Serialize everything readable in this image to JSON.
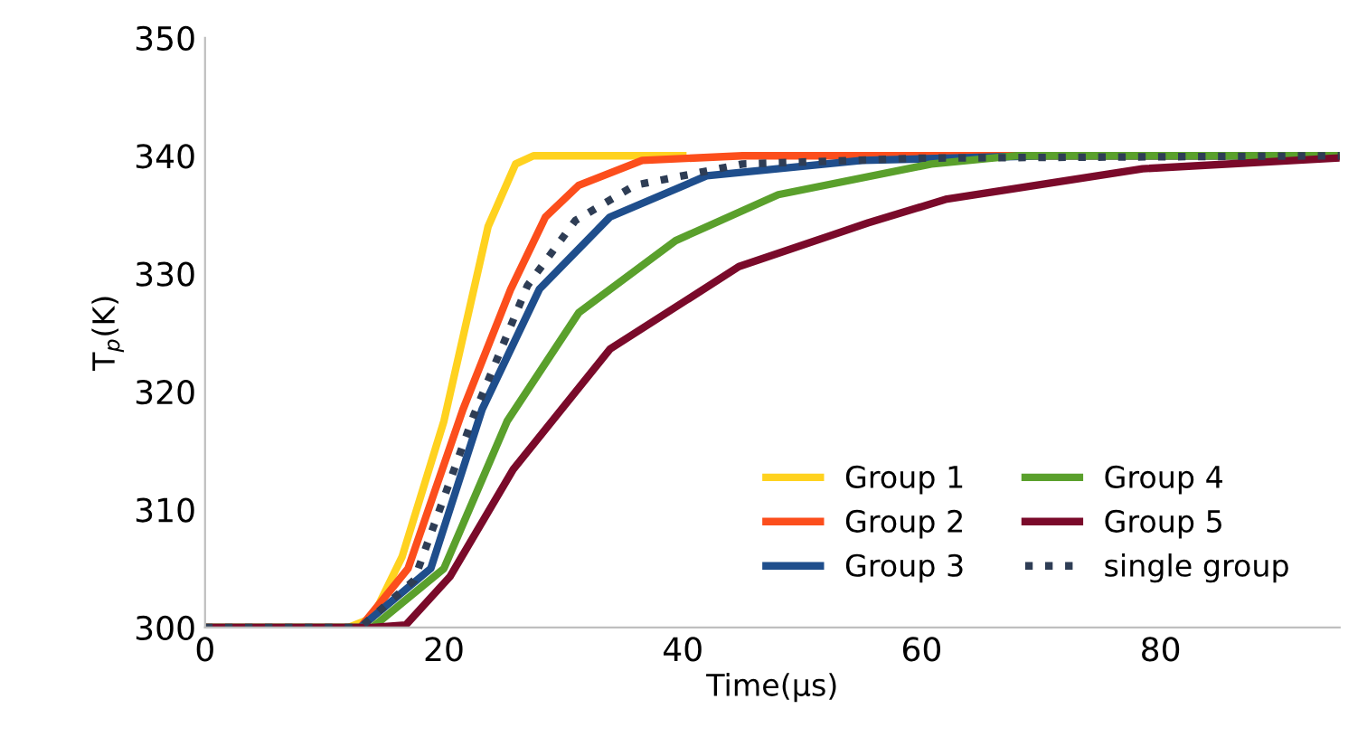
{
  "chart_data": {
    "type": "line",
    "xlabel": "Time(µs)",
    "ylabel": "T$_{p}$(K)",
    "xlim": [
      0,
      95
    ],
    "xticks": [
      0,
      20,
      40,
      60,
      80
    ],
    "ylim": [
      300,
      350
    ],
    "yticks": [
      300,
      310,
      320,
      330,
      340,
      350
    ],
    "grid": false,
    "legend": "bottom right",
    "marker": "none",
    "series": [
      {
        "name": "Group 1",
        "color": "#ffd21f",
        "line_style": "solid",
        "x": [
          0,
          12,
          14,
          16.5,
          20,
          23.7,
          26,
          27.5,
          40
        ],
        "values": [
          300,
          300,
          300.8,
          306,
          317.5,
          334,
          339.3,
          340,
          340
        ]
      },
      {
        "name": "Group 2",
        "color": "#fc4e1c",
        "line_style": "solid",
        "x": [
          0,
          13,
          17,
          21.6,
          25.6,
          28.5,
          31.3,
          36.6,
          45,
          95
        ],
        "values": [
          300,
          300,
          305,
          318.5,
          328.7,
          334.8,
          337.5,
          339.6,
          340,
          340
        ]
      },
      {
        "name": "Group 3",
        "color": "#1f4e8c",
        "line_style": "solid",
        "x": [
          0,
          13,
          18.9,
          23.2,
          28,
          33.9,
          42,
          55,
          70,
          95
        ],
        "values": [
          300,
          300,
          305,
          318.5,
          328.7,
          334.8,
          338.3,
          339.6,
          340,
          340
        ]
      },
      {
        "name": "Group 4",
        "color": "#5aa02c",
        "line_style": "solid",
        "x": [
          0,
          14,
          20,
          25.3,
          31.3,
          39.4,
          48,
          60.8,
          68,
          95
        ],
        "values": [
          300,
          300,
          305,
          317.5,
          326.7,
          332.8,
          336.7,
          339.3,
          340,
          340
        ]
      },
      {
        "name": "Group 5",
        "color": "#7a0a2a",
        "line_style": "solid",
        "x": [
          0,
          14,
          16.8,
          20.5,
          25.8,
          33.9,
          44.7,
          55.5,
          62,
          78.5,
          94.7
        ],
        "values": [
          300,
          300,
          300.2,
          304.3,
          313.4,
          323.6,
          330.6,
          334.3,
          336.3,
          338.9,
          339.8
        ]
      },
      {
        "name": "single group",
        "color": "#2e3d55",
        "line_style": "dotted",
        "x": [
          0,
          13,
          17.5,
          22.5,
          27,
          31,
          36,
          45,
          60,
          95
        ],
        "values": [
          300,
          300,
          304,
          318,
          329,
          334.5,
          337.5,
          339.3,
          339.8,
          340
        ]
      }
    ]
  }
}
